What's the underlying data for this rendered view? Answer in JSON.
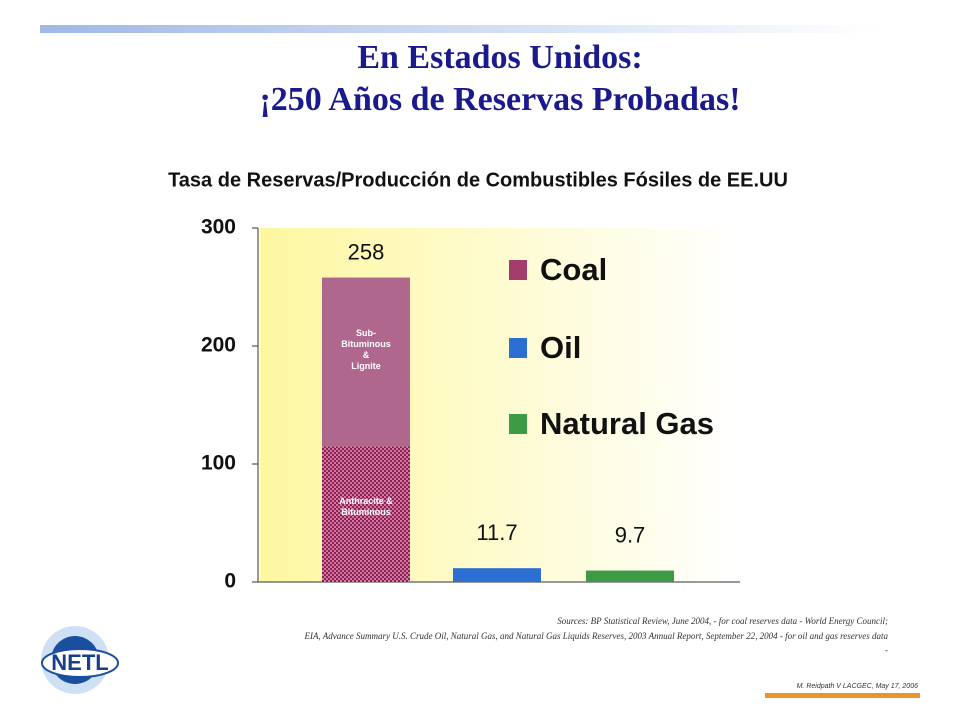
{
  "header": {
    "title_lines": [
      "En Estados Unidos:",
      "¡250 Años de Reservas Probadas!"
    ]
  },
  "chart_data": {
    "type": "bar",
    "title": "Tasa de Reservas/Producción de Combustibles Fósiles de EE.UU",
    "categories": [
      "Coal",
      "Oil",
      "Natural Gas"
    ],
    "values": [
      258,
      11.7,
      9.7
    ],
    "colors": [
      "#a23d6e",
      "#2a6fd1",
      "#3d9a45"
    ],
    "segments": [
      {
        "name_lines": [
          "Anthracite &",
          "Bituminous"
        ],
        "value": 115,
        "color": "#8e1f52"
      },
      {
        "name_lines": [
          "Sub-",
          "Bituminous",
          "&",
          "Lignite"
        ],
        "value": 143,
        "color": "#b0678e"
      }
    ],
    "ylim": [
      0,
      300
    ],
    "yticks": [
      0,
      100,
      200,
      300
    ]
  },
  "sources": [
    "Sources: BP Statistical Review, June 2004, - for coal reserves data - World Energy Council;",
    "EIA, Advance Summary U.S. Crude Oil, Natural Gas, and Natural Gas Liquids Reserves, 2003 Annual Report, September 22, 2004 - for oil and gas reserves data",
    "-"
  ],
  "logo": "NETL",
  "footer": "M. Reidpath V LACGEC, May 17, 2006"
}
